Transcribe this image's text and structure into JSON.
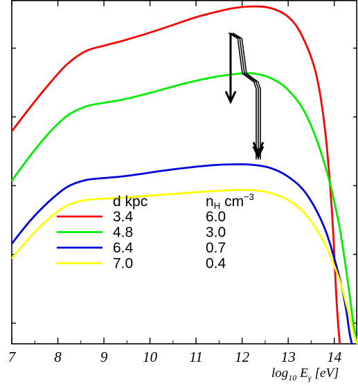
{
  "chart_data": {
    "type": "line",
    "xlim": [
      7,
      14.5
    ],
    "x_ticks": [
      "7",
      "8",
      "9",
      "10",
      "11",
      "12",
      "13",
      "14"
    ],
    "xlabel": "log₁₀ Eγ [eV]",
    "xlabel_parts": {
      "main": "log",
      "sub": "10",
      "var": "E",
      "var_sub": "γ",
      "unit": "[eV]"
    },
    "ylim": [
      0,
      1
    ],
    "legend": {
      "header_d": "d kpc",
      "header_n": "n",
      "header_n_sub": "H",
      "header_n_unit": "cm",
      "header_n_exp": "−3",
      "placement": "center-left"
    },
    "series": [
      {
        "color": "#ff0000",
        "d_label": "3.4",
        "n_label": "6.0",
        "x": [
          7.0,
          7.4,
          7.8,
          8.2,
          8.6,
          9.0,
          9.4,
          9.8,
          10.2,
          10.6,
          11.0,
          11.4,
          11.8,
          12.2,
          12.6,
          13.0,
          13.3,
          13.6,
          13.8,
          13.95,
          14.05,
          14.12
        ],
        "y": [
          0.618,
          0.688,
          0.754,
          0.813,
          0.851,
          0.867,
          0.881,
          0.897,
          0.914,
          0.932,
          0.95,
          0.964,
          0.976,
          0.981,
          0.977,
          0.951,
          0.896,
          0.788,
          0.622,
          0.383,
          0.124,
          0.0
        ]
      },
      {
        "color": "#00ee00",
        "d_label": "4.8",
        "n_label": "3.0",
        "x": [
          7.0,
          7.4,
          7.8,
          8.2,
          8.6,
          9.0,
          9.4,
          9.8,
          10.2,
          10.6,
          11.0,
          11.4,
          11.8,
          12.2,
          12.6,
          13.0,
          13.4,
          13.8,
          14.1,
          14.3,
          14.42,
          14.5
        ],
        "y": [
          0.474,
          0.547,
          0.612,
          0.663,
          0.69,
          0.701,
          0.71,
          0.723,
          0.737,
          0.752,
          0.765,
          0.776,
          0.784,
          0.787,
          0.774,
          0.738,
          0.663,
          0.519,
          0.349,
          0.175,
          0.052,
          0.0
        ]
      },
      {
        "color": "#0000dd",
        "d_label": "6.4",
        "n_label": "0.7",
        "x": [
          7.0,
          7.4,
          7.8,
          8.2,
          8.6,
          9.0,
          9.4,
          9.8,
          10.2,
          10.6,
          11.0,
          11.4,
          11.8,
          12.2,
          12.6,
          13.0,
          13.4,
          13.8,
          14.1,
          14.25,
          14.33,
          14.38
        ],
        "y": [
          0.291,
          0.358,
          0.413,
          0.456,
          0.476,
          0.482,
          0.487,
          0.494,
          0.502,
          0.509,
          0.515,
          0.52,
          0.522,
          0.521,
          0.512,
          0.486,
          0.435,
          0.333,
          0.199,
          0.105,
          0.033,
          0.0
        ]
      },
      {
        "color": "#ffff00",
        "d_label": "7.0",
        "n_label": "0.4",
        "x": [
          7.0,
          7.4,
          7.8,
          8.2,
          8.6,
          9.0,
          9.4,
          9.8,
          10.2,
          10.6,
          11.0,
          11.4,
          11.8,
          12.2,
          12.6,
          13.0,
          13.4,
          13.8,
          14.1,
          14.3,
          14.42,
          14.5
        ],
        "y": [
          0.248,
          0.311,
          0.364,
          0.402,
          0.418,
          0.422,
          0.425,
          0.429,
          0.433,
          0.437,
          0.441,
          0.444,
          0.447,
          0.447,
          0.439,
          0.418,
          0.373,
          0.289,
          0.191,
          0.096,
          0.029,
          0.0
        ]
      }
    ],
    "annotations": [
      {
        "kind": "arrow-path",
        "x": [
          11.75,
          11.75
        ],
        "y": [
          0.904,
          0.704
        ]
      },
      {
        "kind": "arrow-path",
        "x": [
          11.75,
          11.95,
          12.05,
          12.3,
          12.35,
          12.35
        ],
        "y": [
          0.904,
          0.888,
          0.786,
          0.762,
          0.742,
          0.536
        ]
      }
    ]
  }
}
